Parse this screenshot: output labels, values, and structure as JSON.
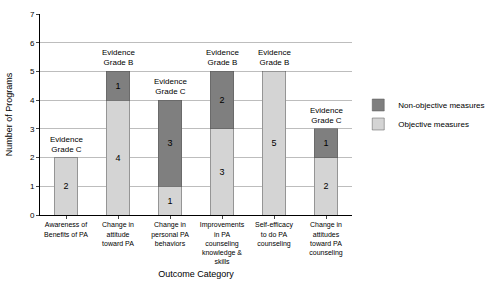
{
  "chart_data": {
    "type": "bar",
    "stacked": true,
    "x_label": "Outcome Category",
    "y_label": "Number of Programs",
    "categories": [
      "Awareness of Benefits of PA",
      "Change in attitude toward PA",
      "Change in personal PA behaviors",
      "Improvements in PA counseling knowledge & skills",
      "Self-efficacy to do PA counseling",
      "Change in attitudes toward PA counseling"
    ],
    "series": [
      {
        "name": "Objective measures",
        "color": "#d4d4d4",
        "values": [
          2,
          4,
          1,
          3,
          5,
          2
        ]
      },
      {
        "name": "Non-objective measures",
        "color": "#7f7f7f",
        "values": [
          null,
          1,
          3,
          2,
          null,
          1
        ]
      }
    ],
    "annotations": [
      {
        "category": "Awareness of Benefits of PA",
        "text": "Evidence Grade C"
      },
      {
        "category": "Change in attitude toward PA",
        "text": "Evidence Grade B"
      },
      {
        "category": "Change in personal PA behaviors",
        "text": "Evidence Grade C"
      },
      {
        "category": "Improvements in PA counseling knowledge & skills",
        "text": "Evidence Grade B"
      },
      {
        "category": "Self-efficacy to do PA counseling",
        "text": "Evidence Grade B"
      },
      {
        "category": "Change in attitudes toward PA counseling",
        "text": "Evidence Grade C"
      }
    ],
    "ylim": [
      0,
      7
    ],
    "yticks": [
      0,
      1,
      2,
      3,
      4,
      5,
      6,
      7
    ],
    "grid": true,
    "data_labels": true,
    "legend": "right"
  }
}
